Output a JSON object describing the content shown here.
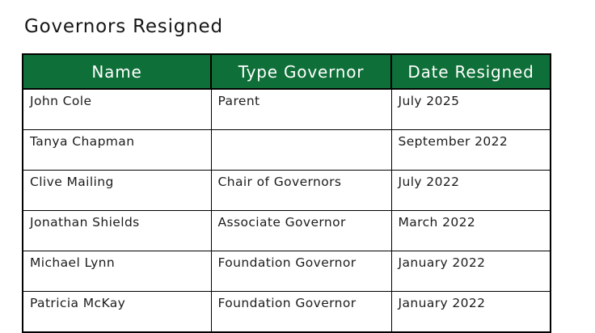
{
  "page": {
    "title": "Governors Resigned"
  },
  "table": {
    "columns": [
      "Name",
      "Type Governor",
      "Date Resigned"
    ],
    "rows": [
      [
        "John Cole",
        "Parent",
        "July 2025"
      ],
      [
        "Tanya Chapman",
        "",
        "September 2022"
      ],
      [
        "Clive Mailing",
        "Chair of Governors",
        "July 2022"
      ],
      [
        "Jonathan Shields",
        "Associate Governor",
        "March 2022"
      ],
      [
        "Michael Lynn",
        "Foundation Governor",
        "January 2022"
      ],
      [
        "Patricia McKay",
        "Foundation Governor",
        "January 2022"
      ]
    ],
    "colors": {
      "header_bg": "#0e6f38",
      "header_text": "#ffffff",
      "border": "#000000",
      "body_text": "#1c1c1c",
      "page_bg": "#ffffff"
    }
  }
}
